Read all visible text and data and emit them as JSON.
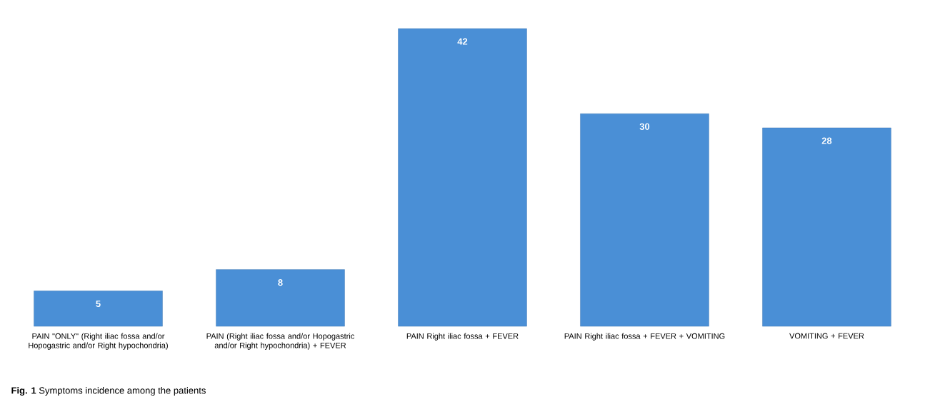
{
  "chart_data": {
    "type": "bar",
    "categories": [
      "PAIN \"ONLY\" (Right iliac fossa and/or Hopogastric and/or Right hypochondria)",
      "PAIN (Right iliac fossa and/or Hopogastric and/or Right hypochondria) + FEVER",
      "PAIN Right iliac fossa + FEVER",
      "PAIN Right iliac fossa + FEVER + VOMITING",
      "VOMITING + FEVER"
    ],
    "values": [
      5,
      8,
      42,
      30,
      28
    ],
    "color": "#4a8fd6",
    "data_labels": true,
    "annotations": [
      "**Fig. 1** Symptoms incidence among the patients"
    ]
  }
}
